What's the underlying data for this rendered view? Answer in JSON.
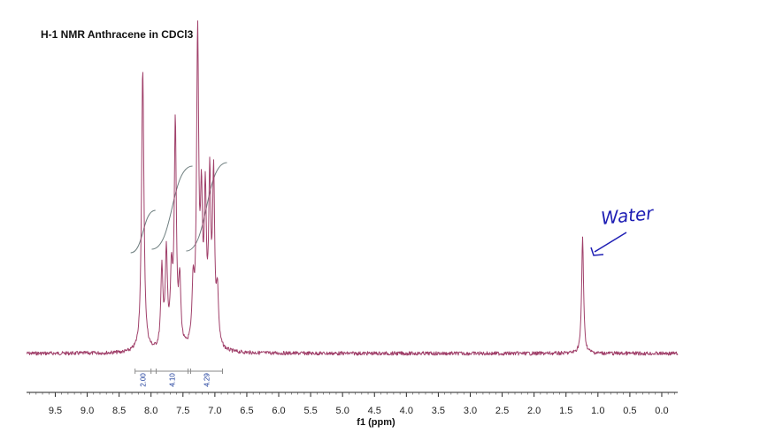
{
  "chart_data": {
    "type": "line",
    "title": "H-1 NMR Anthracene in CDCl3",
    "xlabel": "f1 (ppm)",
    "ylabel": "",
    "xlim": [
      9.95,
      -0.25
    ],
    "x_reversed": true,
    "xticks": [
      9.5,
      9.0,
      8.5,
      8.0,
      7.5,
      7.0,
      6.5,
      6.0,
      5.5,
      5.0,
      4.5,
      4.0,
      3.5,
      3.0,
      2.5,
      2.0,
      1.5,
      1.0,
      0.5,
      0.0
    ],
    "xtick_labels": [
      "9.5",
      "9.0",
      "8.5",
      "8.0",
      "7.5",
      "7.0",
      "6.5",
      "6.0",
      "5.5",
      "5.0",
      "4.5",
      "4.0",
      "3.5",
      "3.0",
      "2.5",
      "2.0",
      "1.5",
      "1.0",
      "0.5",
      "0.0"
    ],
    "series": [
      {
        "color": "#a0406a",
        "peaks": [
          {
            "ppm": 8.13,
            "height": 1.0,
            "width": 0.022
          },
          {
            "ppm": 7.83,
            "height": 0.28,
            "width": 0.02
          },
          {
            "ppm": 7.76,
            "height": 0.33,
            "width": 0.02
          },
          {
            "ppm": 7.68,
            "height": 0.24,
            "width": 0.02
          },
          {
            "ppm": 7.62,
            "height": 0.78,
            "width": 0.02
          },
          {
            "ppm": 7.55,
            "height": 0.22,
            "width": 0.02
          },
          {
            "ppm": 7.34,
            "height": 0.2,
            "width": 0.02
          },
          {
            "ppm": 7.27,
            "height": 1.08,
            "width": 0.02
          },
          {
            "ppm": 7.21,
            "height": 0.46,
            "width": 0.02
          },
          {
            "ppm": 7.15,
            "height": 0.5,
            "width": 0.02
          },
          {
            "ppm": 7.08,
            "height": 0.56,
            "width": 0.02
          },
          {
            "ppm": 7.02,
            "height": 0.58,
            "width": 0.02
          },
          {
            "ppm": 6.96,
            "height": 0.18,
            "width": 0.02
          },
          {
            "ppm": 1.24,
            "height": 0.41,
            "width": 0.018
          }
        ]
      }
    ],
    "integrals": [
      {
        "from": 8.25,
        "to": 8.0,
        "value": "2.00"
      },
      {
        "from": 7.92,
        "to": 7.42,
        "value": "4.10"
      },
      {
        "from": 7.38,
        "to": 6.88,
        "value": "4.29"
      }
    ],
    "annotations": [
      {
        "text": "Water",
        "target_ppm": 1.24,
        "color": "#1e1eb4"
      }
    ]
  }
}
